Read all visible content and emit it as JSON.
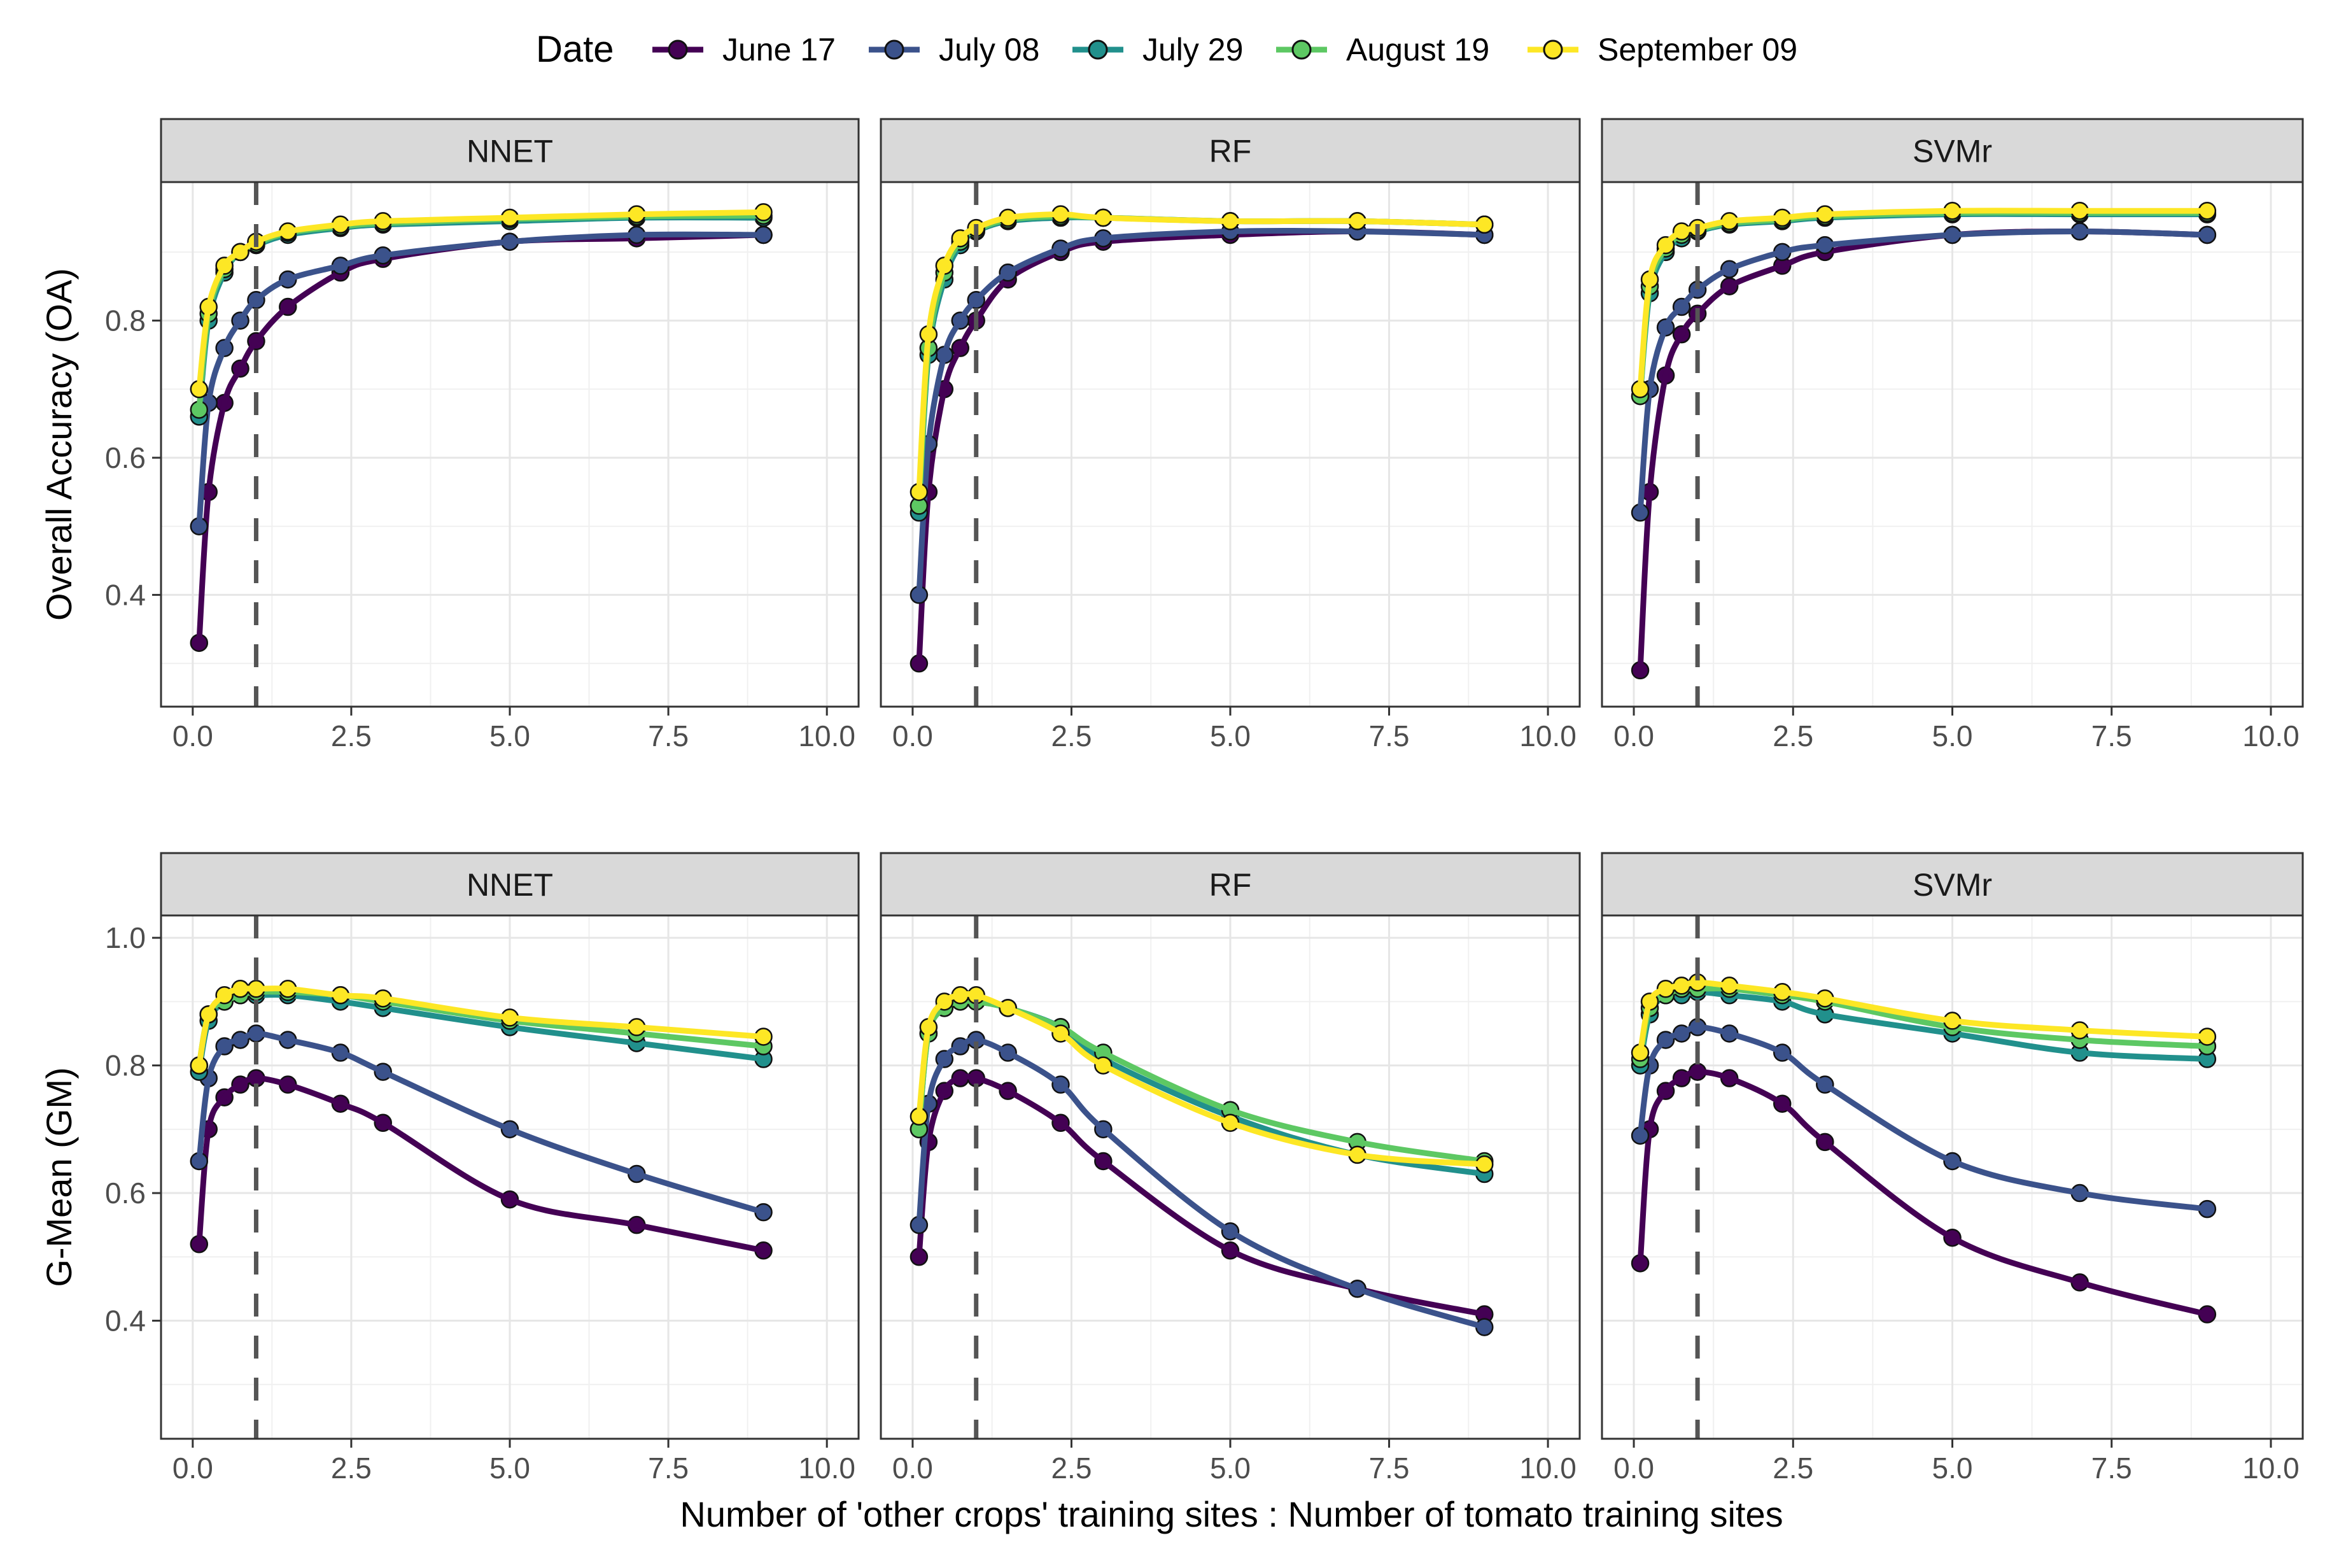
{
  "legend": {
    "title": "Date",
    "entries": [
      "June 17",
      "July 08",
      "July 29",
      "August 19",
      "September 09"
    ],
    "colors": [
      "#440154",
      "#3B528B",
      "#21908C",
      "#5DC863",
      "#FDE725"
    ]
  },
  "chart_data": {
    "type": "line",
    "xlabel": "Number of 'other crops' training sites : Number of tomato training sites",
    "x": [
      0.1,
      0.25,
      0.5,
      0.75,
      1,
      1.5,
      2.33,
      3,
      5,
      7,
      9
    ],
    "xlim": [
      -0.5,
      10.5
    ],
    "xticks": [
      "0.0",
      "2.5",
      "5.0",
      "7.5",
      "10.0"
    ],
    "xtick_values": [
      0,
      2.5,
      5,
      7.5,
      10
    ],
    "reference_line_x": 1,
    "legend_position": "top",
    "grid": true,
    "rows": [
      {
        "ylabel": "Overall Accuracy (OA)",
        "ylim": [
          0.237,
          1.002
        ],
        "yticks": [
          "0.4",
          "0.6",
          "0.8"
        ],
        "ytick_values": [
          0.4,
          0.6,
          0.8
        ],
        "panels": [
          {
            "title": "NNET",
            "series": [
              {
                "name": "June 17",
                "values": [
                  0.33,
                  0.55,
                  0.68,
                  0.73,
                  0.77,
                  0.82,
                  0.87,
                  0.89,
                  0.915,
                  0.92,
                  0.925
                ]
              },
              {
                "name": "July 08",
                "values": [
                  0.5,
                  0.68,
                  0.76,
                  0.8,
                  0.83,
                  0.86,
                  0.88,
                  0.895,
                  0.915,
                  0.925,
                  0.925
                ]
              },
              {
                "name": "July 29",
                "values": [
                  0.66,
                  0.8,
                  0.87,
                  0.9,
                  0.91,
                  0.925,
                  0.935,
                  0.94,
                  0.945,
                  0.95,
                  0.95
                ]
              },
              {
                "name": "August 19",
                "values": [
                  0.67,
                  0.81,
                  0.875,
                  0.9,
                  0.912,
                  0.928,
                  0.937,
                  0.942,
                  0.948,
                  0.952,
                  0.953
                ]
              },
              {
                "name": "September 09",
                "values": [
                  0.7,
                  0.82,
                  0.88,
                  0.9,
                  0.915,
                  0.93,
                  0.94,
                  0.945,
                  0.95,
                  0.955,
                  0.958
                ]
              }
            ]
          },
          {
            "title": "RF",
            "series": [
              {
                "name": "June 17",
                "values": [
                  0.3,
                  0.55,
                  0.7,
                  0.76,
                  0.8,
                  0.86,
                  0.9,
                  0.915,
                  0.925,
                  0.93,
                  0.925
                ]
              },
              {
                "name": "July 08",
                "values": [
                  0.4,
                  0.62,
                  0.75,
                  0.8,
                  0.83,
                  0.87,
                  0.905,
                  0.92,
                  0.93,
                  0.93,
                  0.925
                ]
              },
              {
                "name": "July 29",
                "values": [
                  0.52,
                  0.75,
                  0.86,
                  0.91,
                  0.93,
                  0.945,
                  0.95,
                  0.95,
                  0.945,
                  0.945,
                  0.94
                ]
              },
              {
                "name": "August 19",
                "values": [
                  0.53,
                  0.76,
                  0.87,
                  0.915,
                  0.932,
                  0.947,
                  0.952,
                  0.95,
                  0.945,
                  0.945,
                  0.94
                ]
              },
              {
                "name": "September 09",
                "values": [
                  0.55,
                  0.78,
                  0.88,
                  0.92,
                  0.935,
                  0.95,
                  0.955,
                  0.95,
                  0.945,
                  0.945,
                  0.94
                ]
              }
            ]
          },
          {
            "title": "SVMr",
            "series": [
              {
                "name": "June 17",
                "values": [
                  0.29,
                  0.55,
                  0.72,
                  0.78,
                  0.81,
                  0.85,
                  0.88,
                  0.9,
                  0.925,
                  0.93,
                  0.925
                ]
              },
              {
                "name": "July 08",
                "values": [
                  0.52,
                  0.7,
                  0.79,
                  0.82,
                  0.845,
                  0.875,
                  0.9,
                  0.91,
                  0.925,
                  0.93,
                  0.925
                ]
              },
              {
                "name": "July 29",
                "values": [
                  0.69,
                  0.84,
                  0.9,
                  0.92,
                  0.93,
                  0.94,
                  0.945,
                  0.95,
                  0.955,
                  0.955,
                  0.955
                ]
              },
              {
                "name": "August 19",
                "values": [
                  0.69,
                  0.85,
                  0.905,
                  0.925,
                  0.932,
                  0.942,
                  0.947,
                  0.952,
                  0.957,
                  0.957,
                  0.957
                ]
              },
              {
                "name": "September 09",
                "values": [
                  0.7,
                  0.86,
                  0.91,
                  0.93,
                  0.935,
                  0.945,
                  0.95,
                  0.955,
                  0.96,
                  0.96,
                  0.96
                ]
              }
            ]
          }
        ]
      },
      {
        "ylabel": "G-Mean (GM)",
        "ylim": [
          0.215,
          1.035
        ],
        "yticks": [
          "0.4",
          "0.6",
          "0.8",
          "1.0"
        ],
        "ytick_values": [
          0.4,
          0.6,
          0.8,
          1.0
        ],
        "panels": [
          {
            "title": "NNET",
            "series": [
              {
                "name": "June 17",
                "values": [
                  0.52,
                  0.7,
                  0.75,
                  0.77,
                  0.78,
                  0.77,
                  0.74,
                  0.71,
                  0.59,
                  0.55,
                  0.51
                ]
              },
              {
                "name": "July 08",
                "values": [
                  0.65,
                  0.78,
                  0.83,
                  0.84,
                  0.85,
                  0.84,
                  0.82,
                  0.79,
                  0.7,
                  0.63,
                  0.57
                ]
              },
              {
                "name": "July 29",
                "values": [
                  0.79,
                  0.87,
                  0.9,
                  0.91,
                  0.91,
                  0.91,
                  0.9,
                  0.89,
                  0.86,
                  0.835,
                  0.81
                ]
              },
              {
                "name": "August 19",
                "values": [
                  0.8,
                  0.88,
                  0.9,
                  0.91,
                  0.915,
                  0.915,
                  0.91,
                  0.9,
                  0.87,
                  0.85,
                  0.83
                ]
              },
              {
                "name": "September 09",
                "values": [
                  0.8,
                  0.88,
                  0.91,
                  0.92,
                  0.92,
                  0.92,
                  0.91,
                  0.905,
                  0.875,
                  0.86,
                  0.845
                ]
              }
            ]
          },
          {
            "title": "RF",
            "series": [
              {
                "name": "June 17",
                "values": [
                  0.5,
                  0.68,
                  0.76,
                  0.78,
                  0.78,
                  0.76,
                  0.71,
                  0.65,
                  0.51,
                  0.45,
                  0.41
                ]
              },
              {
                "name": "July 08",
                "values": [
                  0.55,
                  0.74,
                  0.81,
                  0.83,
                  0.84,
                  0.82,
                  0.77,
                  0.7,
                  0.54,
                  0.45,
                  0.39
                ]
              },
              {
                "name": "July 29",
                "values": [
                  0.7,
                  0.85,
                  0.89,
                  0.9,
                  0.9,
                  0.89,
                  0.86,
                  0.81,
                  0.72,
                  0.66,
                  0.63
                ]
              },
              {
                "name": "August 19",
                "values": [
                  0.7,
                  0.85,
                  0.89,
                  0.9,
                  0.9,
                  0.89,
                  0.86,
                  0.82,
                  0.73,
                  0.68,
                  0.65
                ]
              },
              {
                "name": "September 09",
                "values": [
                  0.72,
                  0.86,
                  0.9,
                  0.91,
                  0.91,
                  0.89,
                  0.85,
                  0.8,
                  0.71,
                  0.66,
                  0.645
                ]
              }
            ]
          },
          {
            "title": "SVMr",
            "series": [
              {
                "name": "June 17",
                "values": [
                  0.49,
                  0.7,
                  0.76,
                  0.78,
                  0.79,
                  0.78,
                  0.74,
                  0.68,
                  0.53,
                  0.46,
                  0.41
                ]
              },
              {
                "name": "July 08",
                "values": [
                  0.69,
                  0.8,
                  0.84,
                  0.85,
                  0.86,
                  0.85,
                  0.82,
                  0.77,
                  0.65,
                  0.6,
                  0.575
                ]
              },
              {
                "name": "July 29",
                "values": [
                  0.8,
                  0.88,
                  0.91,
                  0.91,
                  0.915,
                  0.91,
                  0.9,
                  0.88,
                  0.85,
                  0.82,
                  0.81
                ]
              },
              {
                "name": "August 19",
                "values": [
                  0.81,
                  0.89,
                  0.91,
                  0.92,
                  0.92,
                  0.92,
                  0.91,
                  0.9,
                  0.86,
                  0.84,
                  0.83
                ]
              },
              {
                "name": "September 09",
                "values": [
                  0.82,
                  0.9,
                  0.92,
                  0.925,
                  0.93,
                  0.925,
                  0.915,
                  0.905,
                  0.87,
                  0.855,
                  0.845
                ]
              }
            ]
          }
        ]
      }
    ]
  }
}
